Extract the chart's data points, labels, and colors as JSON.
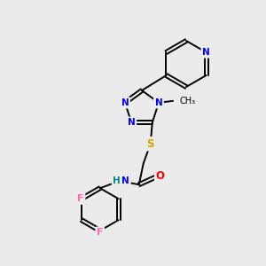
{
  "background_color": "#ebebeb",
  "bond_color": "#000000",
  "atom_colors": {
    "N": "#0000FF",
    "O": "#FF0000",
    "S": "#CCAA00",
    "F": "#FF69B4",
    "NH": "#008B8B",
    "C": "#000000"
  },
  "figsize": [
    3.0,
    3.0
  ],
  "dpi": 100,
  "lw": 1.4,
  "font_size": 7.5
}
